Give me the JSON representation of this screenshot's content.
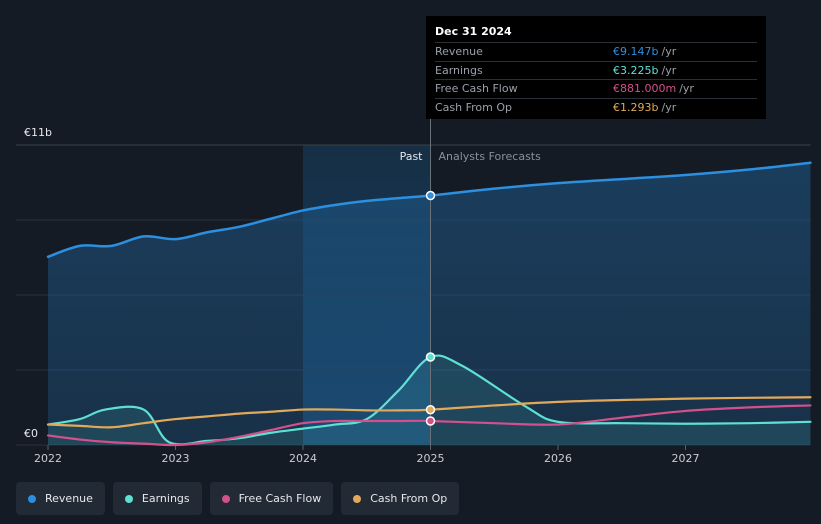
{
  "chart_data": {
    "type": "area",
    "divider_label_past": "Past",
    "divider_label_forecast": "Analysts Forecasts",
    "divider_x": 2025.0,
    "highlight_start_x": 2024.0,
    "y_axis_labels": {
      "top": "€11b",
      "bottom": "€0"
    },
    "ylim": [
      0,
      11
    ],
    "xlim": [
      2021.75,
      2027.98
    ],
    "x_ticks": [
      2022,
      2023,
      2024,
      2025,
      2026,
      2027
    ],
    "x_tick_labels": [
      "2022",
      "2023",
      "2024",
      "2025",
      "2026",
      "2027"
    ],
    "series": [
      {
        "name": "Revenue",
        "color": "#2c8fe0",
        "fill": true,
        "points": [
          [
            2022.0,
            6.9
          ],
          [
            2022.25,
            7.3
          ],
          [
            2022.5,
            7.3
          ],
          [
            2022.75,
            7.65
          ],
          [
            2023.0,
            7.55
          ],
          [
            2023.25,
            7.8
          ],
          [
            2023.5,
            8.0
          ],
          [
            2023.75,
            8.3
          ],
          [
            2024.0,
            8.6
          ],
          [
            2024.25,
            8.8
          ],
          [
            2024.5,
            8.95
          ],
          [
            2024.75,
            9.05
          ],
          [
            2025.0,
            9.147
          ],
          [
            2025.5,
            9.4
          ],
          [
            2026.0,
            9.6
          ],
          [
            2026.5,
            9.75
          ],
          [
            2027.0,
            9.9
          ],
          [
            2027.5,
            10.1
          ],
          [
            2027.98,
            10.35
          ]
        ]
      },
      {
        "name": "Earnings",
        "color": "#5ee0d3",
        "fill": true,
        "points": [
          [
            2022.0,
            0.75
          ],
          [
            2022.25,
            0.95
          ],
          [
            2022.45,
            1.3
          ],
          [
            2022.75,
            1.3
          ],
          [
            2022.95,
            0.1
          ],
          [
            2023.25,
            0.15
          ],
          [
            2023.5,
            0.25
          ],
          [
            2023.75,
            0.45
          ],
          [
            2024.0,
            0.6
          ],
          [
            2024.25,
            0.75
          ],
          [
            2024.5,
            0.95
          ],
          [
            2024.75,
            2.0
          ],
          [
            2025.0,
            3.225
          ],
          [
            2025.25,
            2.9
          ],
          [
            2025.75,
            1.4
          ],
          [
            2026.0,
            0.85
          ],
          [
            2026.5,
            0.8
          ],
          [
            2027.0,
            0.78
          ],
          [
            2027.5,
            0.8
          ],
          [
            2027.98,
            0.85
          ]
        ]
      },
      {
        "name": "Free Cash Flow",
        "color": "#d4508a",
        "fill": false,
        "points": [
          [
            2022.0,
            0.35
          ],
          [
            2022.25,
            0.2
          ],
          [
            2022.5,
            0.1
          ],
          [
            2022.75,
            0.05
          ],
          [
            2023.0,
            0.0
          ],
          [
            2023.25,
            0.1
          ],
          [
            2023.5,
            0.3
          ],
          [
            2023.75,
            0.55
          ],
          [
            2024.0,
            0.8
          ],
          [
            2024.25,
            0.88
          ],
          [
            2024.5,
            0.88
          ],
          [
            2024.75,
            0.88
          ],
          [
            2025.0,
            0.881
          ],
          [
            2025.5,
            0.8
          ],
          [
            2026.0,
            0.75
          ],
          [
            2026.5,
            1.0
          ],
          [
            2027.0,
            1.25
          ],
          [
            2027.5,
            1.38
          ],
          [
            2027.98,
            1.45
          ]
        ]
      },
      {
        "name": "Cash From Op",
        "color": "#e3a95a",
        "fill": false,
        "points": [
          [
            2022.0,
            0.75
          ],
          [
            2022.25,
            0.7
          ],
          [
            2022.5,
            0.65
          ],
          [
            2022.75,
            0.8
          ],
          [
            2023.0,
            0.95
          ],
          [
            2023.25,
            1.05
          ],
          [
            2023.5,
            1.15
          ],
          [
            2023.75,
            1.22
          ],
          [
            2024.0,
            1.3
          ],
          [
            2024.25,
            1.3
          ],
          [
            2024.5,
            1.27
          ],
          [
            2024.75,
            1.27
          ],
          [
            2025.0,
            1.293
          ],
          [
            2025.5,
            1.45
          ],
          [
            2026.0,
            1.58
          ],
          [
            2026.5,
            1.65
          ],
          [
            2027.0,
            1.7
          ],
          [
            2027.5,
            1.73
          ],
          [
            2027.98,
            1.75
          ]
        ]
      }
    ],
    "markers_x": 2025.0
  },
  "tooltip": {
    "date": "Dec 31 2024",
    "rows": [
      {
        "label": "Revenue",
        "value": "€9.147b",
        "unit": "/yr",
        "color": "#2c8fe0"
      },
      {
        "label": "Earnings",
        "value": "€3.225b",
        "unit": "/yr",
        "color": "#5ee0d3"
      },
      {
        "label": "Free Cash Flow",
        "value": "€881.000m",
        "unit": "/yr",
        "color": "#d4508a"
      },
      {
        "label": "Cash From Op",
        "value": "€1.293b",
        "unit": "/yr",
        "color": "#e3a95a"
      }
    ]
  },
  "legend": [
    {
      "label": "Revenue",
      "color": "#2c8fe0"
    },
    {
      "label": "Earnings",
      "color": "#5ee0d3"
    },
    {
      "label": "Free Cash Flow",
      "color": "#d4508a"
    },
    {
      "label": "Cash From Op",
      "color": "#e3a95a"
    }
  ]
}
